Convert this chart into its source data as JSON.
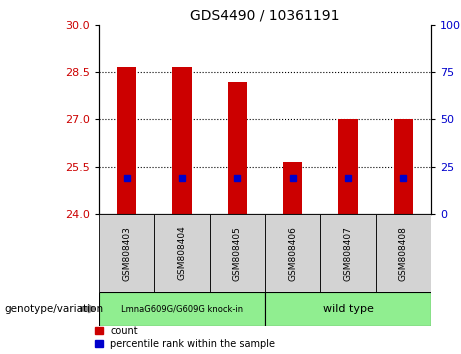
{
  "title": "GDS4490 / 10361191",
  "samples": [
    "GSM808403",
    "GSM808404",
    "GSM808405",
    "GSM808406",
    "GSM808407",
    "GSM808408"
  ],
  "count_values": [
    28.65,
    28.65,
    28.2,
    25.65,
    27.0,
    27.0
  ],
  "percentile_values": [
    25.15,
    25.15,
    25.15,
    25.15,
    25.15,
    25.15
  ],
  "ymin": 24,
  "ymax": 30,
  "yticks_left": [
    24,
    25.5,
    27,
    28.5,
    30
  ],
  "yticks_right": [
    0,
    25,
    50,
    75,
    100
  ],
  "bar_color": "#cc0000",
  "percentile_color": "#0000cc",
  "group1_label": "LmnaG609G/G609G knock-in",
  "group2_label": "wild type",
  "group1_n": 3,
  "group2_n": 3,
  "group1_color": "#90ee90",
  "group2_color": "#90ee90",
  "tick_label_color_left": "#cc0000",
  "tick_label_color_right": "#0000cc",
  "legend_count_label": "count",
  "legend_percentile_label": "percentile rank within the sample",
  "xlabel_group": "genotype/variation"
}
